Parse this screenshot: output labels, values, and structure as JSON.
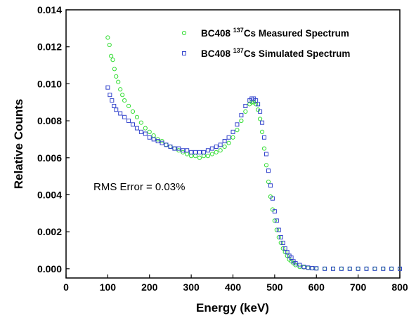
{
  "chart_data": {
    "type": "scatter",
    "xlabel": "Energy (keV)",
    "ylabel": "Relative Counts",
    "xlim": [
      0,
      800
    ],
    "ylim": [
      -0.0005,
      0.014
    ],
    "xticks": [
      "0",
      "100",
      "200",
      "300",
      "400",
      "500",
      "600",
      "700",
      "800"
    ],
    "yticks": [
      "0.000",
      "0.002",
      "0.004",
      "0.006",
      "0.008",
      "0.010",
      "0.012",
      "0.014"
    ],
    "grid": false,
    "legend_position": "top-right",
    "annotation": "RMS Error = 0.03%",
    "series": [
      {
        "name_parts": [
          "BC408 ",
          "137",
          "Cs Measured Spectrum"
        ],
        "marker": "circle",
        "color": "#33dd33",
        "points": [
          [
            100,
            0.0125
          ],
          [
            104,
            0.0121
          ],
          [
            108,
            0.0115
          ],
          [
            112,
            0.0113
          ],
          [
            116,
            0.0108
          ],
          [
            120,
            0.0104
          ],
          [
            125,
            0.0101
          ],
          [
            130,
            0.0097
          ],
          [
            135,
            0.0094
          ],
          [
            140,
            0.0091
          ],
          [
            150,
            0.0088
          ],
          [
            160,
            0.0085
          ],
          [
            170,
            0.0082
          ],
          [
            180,
            0.0079
          ],
          [
            190,
            0.0076
          ],
          [
            200,
            0.0074
          ],
          [
            210,
            0.0072
          ],
          [
            220,
            0.007
          ],
          [
            230,
            0.0069
          ],
          [
            240,
            0.0067
          ],
          [
            250,
            0.0066
          ],
          [
            260,
            0.0065
          ],
          [
            270,
            0.0064
          ],
          [
            280,
            0.0063
          ],
          [
            290,
            0.0062
          ],
          [
            300,
            0.0061
          ],
          [
            310,
            0.0061
          ],
          [
            320,
            0.006
          ],
          [
            330,
            0.0061
          ],
          [
            340,
            0.0061
          ],
          [
            350,
            0.0062
          ],
          [
            360,
            0.0063
          ],
          [
            370,
            0.0064
          ],
          [
            380,
            0.0066
          ],
          [
            390,
            0.0068
          ],
          [
            400,
            0.0071
          ],
          [
            410,
            0.0075
          ],
          [
            420,
            0.008
          ],
          [
            430,
            0.0085
          ],
          [
            440,
            0.0089
          ],
          [
            445,
            0.009
          ],
          [
            450,
            0.009
          ],
          [
            455,
            0.0089
          ],
          [
            460,
            0.0086
          ],
          [
            465,
            0.0081
          ],
          [
            470,
            0.0074
          ],
          [
            475,
            0.0065
          ],
          [
            480,
            0.0056
          ],
          [
            485,
            0.0047
          ],
          [
            490,
            0.0039
          ],
          [
            495,
            0.0032
          ],
          [
            500,
            0.0026
          ],
          [
            505,
            0.0021
          ],
          [
            510,
            0.0017
          ],
          [
            515,
            0.0014
          ],
          [
            520,
            0.0011
          ],
          [
            525,
            0.0009
          ],
          [
            530,
            0.0007
          ],
          [
            535,
            0.0005
          ],
          [
            540,
            0.0004
          ],
          [
            545,
            0.0003
          ],
          [
            550,
            0.0002
          ],
          [
            560,
            0.0001
          ],
          [
            570,
            8e-05
          ],
          [
            580,
            5e-05
          ],
          [
            590,
            3e-05
          ],
          [
            600,
            2e-05
          ],
          [
            620,
            0.0
          ],
          [
            640,
            0.0
          ],
          [
            660,
            0.0
          ],
          [
            680,
            0.0
          ],
          [
            700,
            0.0
          ],
          [
            720,
            0.0
          ],
          [
            740,
            0.0
          ],
          [
            760,
            0.0
          ],
          [
            780,
            0.0
          ],
          [
            800,
            0.0
          ]
        ]
      },
      {
        "name_parts": [
          "BC408 ",
          "137",
          "Cs Simulated Spectrum"
        ],
        "marker": "square",
        "color": "#3344cc",
        "points": [
          [
            100,
            0.0098
          ],
          [
            105,
            0.0094
          ],
          [
            110,
            0.0091
          ],
          [
            115,
            0.0088
          ],
          [
            120,
            0.0086
          ],
          [
            130,
            0.0084
          ],
          [
            140,
            0.0082
          ],
          [
            150,
            0.008
          ],
          [
            160,
            0.0078
          ],
          [
            170,
            0.0076
          ],
          [
            180,
            0.0074
          ],
          [
            190,
            0.0073
          ],
          [
            200,
            0.0071
          ],
          [
            210,
            0.007
          ],
          [
            220,
            0.0069
          ],
          [
            230,
            0.0068
          ],
          [
            240,
            0.0067
          ],
          [
            250,
            0.0066
          ],
          [
            260,
            0.0065
          ],
          [
            270,
            0.0065
          ],
          [
            280,
            0.0064
          ],
          [
            290,
            0.0064
          ],
          [
            300,
            0.0063
          ],
          [
            310,
            0.0063
          ],
          [
            320,
            0.0063
          ],
          [
            330,
            0.0063
          ],
          [
            340,
            0.0064
          ],
          [
            350,
            0.0065
          ],
          [
            360,
            0.0066
          ],
          [
            370,
            0.0067
          ],
          [
            380,
            0.0069
          ],
          [
            390,
            0.0071
          ],
          [
            400,
            0.0074
          ],
          [
            410,
            0.0078
          ],
          [
            420,
            0.0083
          ],
          [
            430,
            0.0088
          ],
          [
            440,
            0.0091
          ],
          [
            445,
            0.0092
          ],
          [
            450,
            0.0092
          ],
          [
            455,
            0.0091
          ],
          [
            460,
            0.0089
          ],
          [
            465,
            0.0085
          ],
          [
            470,
            0.0079
          ],
          [
            475,
            0.0071
          ],
          [
            480,
            0.0062
          ],
          [
            485,
            0.0053
          ],
          [
            490,
            0.0045
          ],
          [
            495,
            0.0038
          ],
          [
            500,
            0.0031
          ],
          [
            505,
            0.0026
          ],
          [
            510,
            0.0021
          ],
          [
            515,
            0.0017
          ],
          [
            520,
            0.0014
          ],
          [
            525,
            0.0011
          ],
          [
            530,
            0.0009
          ],
          [
            535,
            0.0007
          ],
          [
            540,
            0.0006
          ],
          [
            545,
            0.0004
          ],
          [
            550,
            0.0003
          ],
          [
            560,
            0.0002
          ],
          [
            570,
            0.0001
          ],
          [
            580,
            6e-05
          ],
          [
            590,
            3e-05
          ],
          [
            600,
            2e-05
          ],
          [
            620,
            0.0
          ],
          [
            640,
            0.0
          ],
          [
            660,
            0.0
          ],
          [
            680,
            0.0
          ],
          [
            700,
            0.0
          ],
          [
            720,
            0.0
          ],
          [
            740,
            0.0
          ],
          [
            760,
            0.0
          ],
          [
            780,
            0.0
          ],
          [
            800,
            0.0
          ]
        ]
      }
    ]
  }
}
